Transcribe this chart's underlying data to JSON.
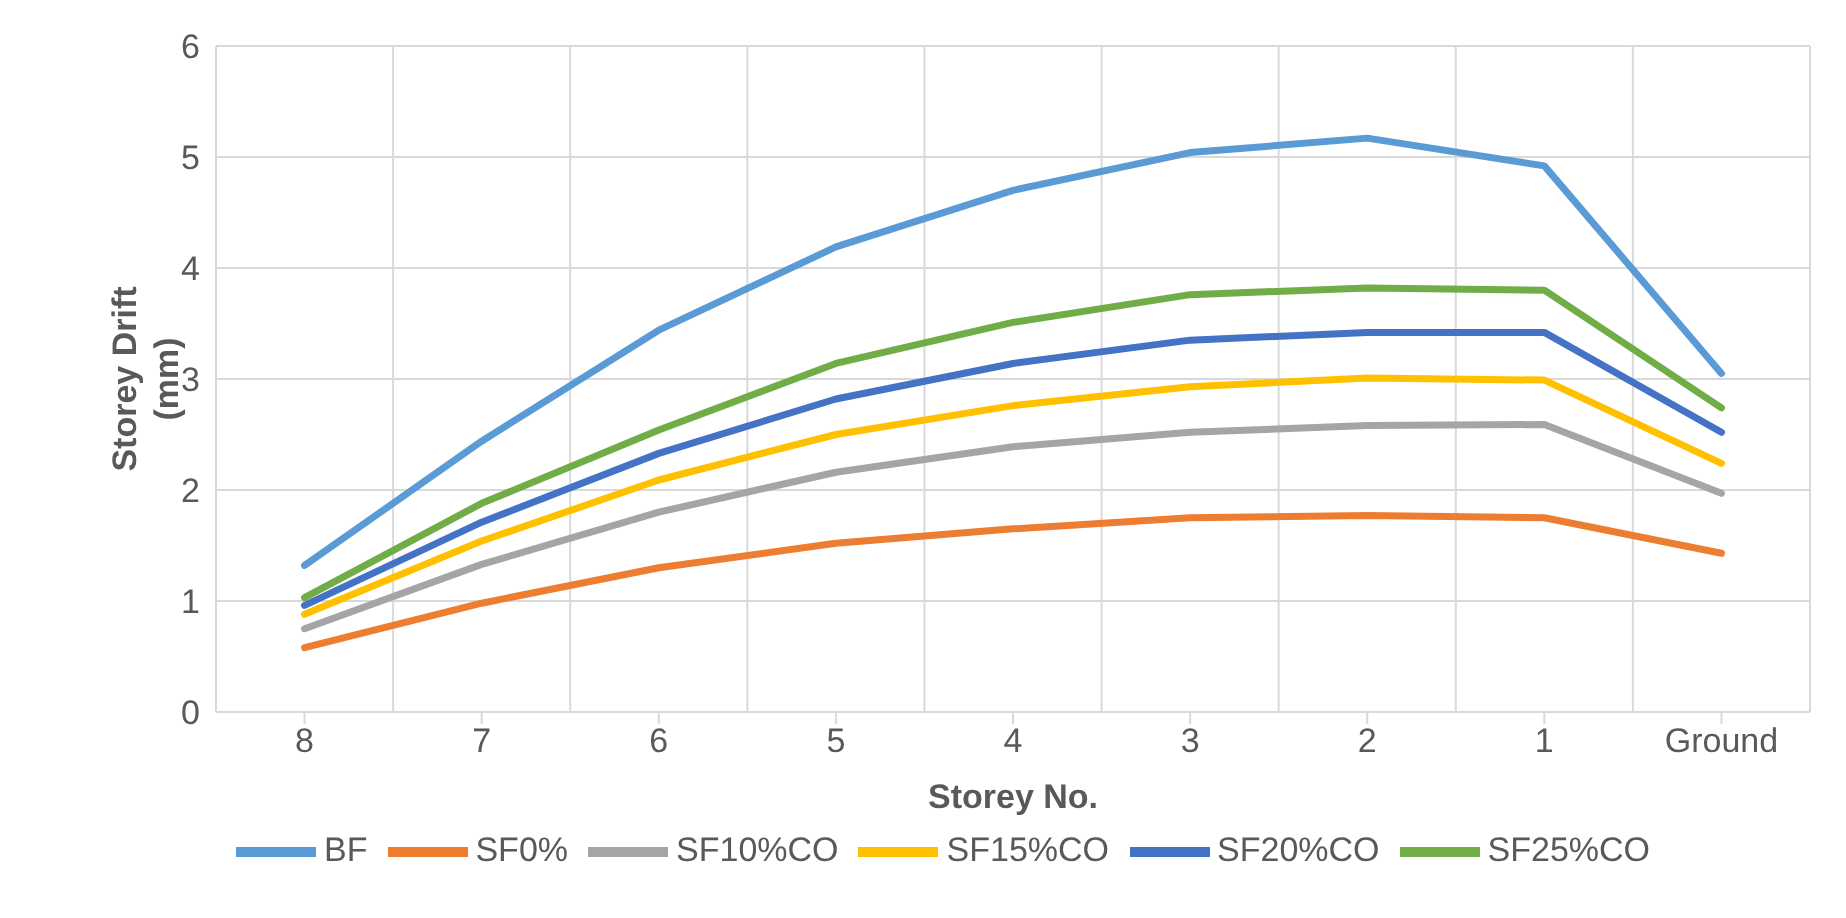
{
  "chart_data": {
    "type": "line",
    "xlabel": "Storey No.",
    "ylabel": "Storey Drift (mm)",
    "categories": [
      "8",
      "7",
      "6",
      "5",
      "4",
      "3",
      "2",
      "1",
      "Ground"
    ],
    "ylim": [
      0,
      6
    ],
    "yticks": [
      0,
      1,
      2,
      3,
      4,
      5,
      6
    ],
    "grid": true,
    "legend": "bottom",
    "marker": "none",
    "line_style": "solid",
    "series": [
      {
        "name": "BF",
        "color": "#5b9bd5",
        "values": [
          1.32,
          2.44,
          3.44,
          4.19,
          4.7,
          5.04,
          5.17,
          4.92,
          3.05
        ]
      },
      {
        "name": "SF0%",
        "color": "#ed7d31",
        "values": [
          0.58,
          0.98,
          1.3,
          1.52,
          1.65,
          1.75,
          1.77,
          1.75,
          1.43
        ]
      },
      {
        "name": "SF10%CO",
        "color": "#a5a5a5",
        "values": [
          0.75,
          1.33,
          1.8,
          2.16,
          2.39,
          2.52,
          2.58,
          2.59,
          1.97
        ]
      },
      {
        "name": "SF15%CO",
        "color": "#ffc000",
        "values": [
          0.88,
          1.54,
          2.09,
          2.5,
          2.76,
          2.93,
          3.01,
          2.99,
          2.24
        ]
      },
      {
        "name": "SF20%CO",
        "color": "#4472c4",
        "values": [
          0.96,
          1.71,
          2.33,
          2.82,
          3.14,
          3.35,
          3.42,
          3.42,
          2.52
        ]
      },
      {
        "name": "SF25%CO",
        "color": "#70ad47",
        "values": [
          1.03,
          1.88,
          2.54,
          3.14,
          3.51,
          3.76,
          3.82,
          3.8,
          2.74
        ]
      }
    ]
  }
}
